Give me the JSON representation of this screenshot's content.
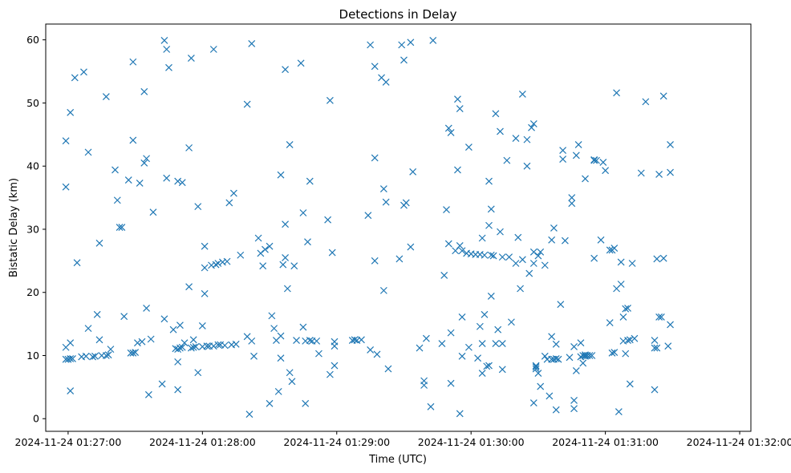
{
  "chart_data": {
    "type": "scatter",
    "title": "Detections in Delay",
    "xlabel": "Time (UTC)",
    "ylabel": "Bistatic Delay (km)",
    "marker": "x",
    "color": "#1f77b4",
    "grid": false,
    "x_unit": "2024-11-24 time (HH:MM:SS)",
    "xlim": [
      "01:26:50",
      "01:32:05"
    ],
    "ylim": [
      -2,
      62.5
    ],
    "x_ticks": [
      "2024-11-24 01:27:00",
      "2024-11-24 01:28:00",
      "2024-11-24 01:29:00",
      "2024-11-24 01:30:00",
      "2024-11-24 01:31:00",
      "2024-11-24 01:32:00"
    ],
    "y_ticks": [
      "0",
      "10",
      "20",
      "30",
      "40",
      "50",
      "60"
    ],
    "points": [
      [
        "01:26:59",
        44.0
      ],
      [
        "01:26:59",
        36.7
      ],
      [
        "01:26:59",
        11.3
      ],
      [
        "01:26:59",
        9.4
      ],
      [
        "01:27:00",
        9.4
      ],
      [
        "01:27:01",
        9.5
      ],
      [
        "01:27:01",
        12.0
      ],
      [
        "01:27:01",
        48.5
      ],
      [
        "01:27:01",
        4.4
      ],
      [
        "01:27:02",
        9.5
      ],
      [
        "01:27:03",
        54.0
      ],
      [
        "01:27:04",
        24.7
      ],
      [
        "01:27:06",
        9.8
      ],
      [
        "01:27:07",
        54.9
      ],
      [
        "01:27:08",
        9.9
      ],
      [
        "01:27:09",
        42.2
      ],
      [
        "01:27:09",
        14.3
      ],
      [
        "01:27:11",
        9.8
      ],
      [
        "01:27:12",
        9.9
      ],
      [
        "01:27:13",
        16.5
      ],
      [
        "01:27:14",
        27.8
      ],
      [
        "01:27:14",
        12.5
      ],
      [
        "01:27:15",
        10.0
      ],
      [
        "01:27:17",
        51.0
      ],
      [
        "01:27:17",
        10.0
      ],
      [
        "01:27:18",
        10.1
      ],
      [
        "01:27:19",
        11.0
      ],
      [
        "01:27:21",
        39.4
      ],
      [
        "01:27:22",
        34.6
      ],
      [
        "01:27:23",
        30.3
      ],
      [
        "01:27:24",
        30.3
      ],
      [
        "01:27:25",
        16.2
      ],
      [
        "01:27:27",
        37.8
      ],
      [
        "01:27:28",
        10.4
      ],
      [
        "01:27:29",
        44.1
      ],
      [
        "01:27:29",
        56.5
      ],
      [
        "01:27:29",
        10.4
      ],
      [
        "01:27:30",
        10.5
      ],
      [
        "01:27:31",
        12.0
      ],
      [
        "01:27:32",
        37.3
      ],
      [
        "01:27:33",
        12.2
      ],
      [
        "01:27:34",
        40.5
      ],
      [
        "01:27:34",
        51.8
      ],
      [
        "01:27:35",
        41.2
      ],
      [
        "01:27:35",
        17.5
      ],
      [
        "01:27:36",
        3.8
      ],
      [
        "01:27:37",
        12.6
      ],
      [
        "01:27:38",
        32.7
      ],
      [
        "01:27:42",
        5.5
      ],
      [
        "01:27:43",
        59.9
      ],
      [
        "01:27:43",
        15.8
      ],
      [
        "01:27:44",
        38.1
      ],
      [
        "01:27:44",
        58.5
      ],
      [
        "01:27:45",
        55.6
      ],
      [
        "01:27:47",
        14.1
      ],
      [
        "01:27:48",
        11.1
      ],
      [
        "01:27:49",
        37.6
      ],
      [
        "01:27:49",
        4.6
      ],
      [
        "01:27:49",
        9.0
      ],
      [
        "01:27:49",
        11.0
      ],
      [
        "01:27:50",
        11.2
      ],
      [
        "01:27:50",
        14.8
      ],
      [
        "01:27:51",
        37.4
      ],
      [
        "01:27:51",
        11.3
      ],
      [
        "01:27:52",
        12.0
      ],
      [
        "01:27:54",
        20.9
      ],
      [
        "01:27:54",
        42.9
      ],
      [
        "01:27:55",
        11.2
      ],
      [
        "01:27:55",
        57.1
      ],
      [
        "01:27:56",
        11.3
      ],
      [
        "01:27:56",
        12.5
      ],
      [
        "01:27:57",
        11.4
      ],
      [
        "01:27:58",
        7.3
      ],
      [
        "01:27:58",
        33.6
      ],
      [
        "01:28:00",
        14.7
      ],
      [
        "01:28:00",
        11.4
      ],
      [
        "01:28:01",
        23.9
      ],
      [
        "01:28:01",
        19.8
      ],
      [
        "01:28:01",
        27.3
      ],
      [
        "01:28:02",
        11.5
      ],
      [
        "01:28:03",
        11.5
      ],
      [
        "01:28:04",
        24.3
      ],
      [
        "01:28:05",
        58.5
      ],
      [
        "01:28:05",
        11.5
      ],
      [
        "01:28:06",
        24.4
      ],
      [
        "01:28:07",
        11.7
      ],
      [
        "01:28:07",
        24.6
      ],
      [
        "01:28:08",
        11.7
      ],
      [
        "01:28:09",
        24.8
      ],
      [
        "01:28:10",
        11.6
      ],
      [
        "01:28:11",
        24.9
      ],
      [
        "01:28:12",
        34.2
      ],
      [
        "01:28:13",
        11.7
      ],
      [
        "01:28:14",
        35.7
      ],
      [
        "01:28:15",
        11.8
      ],
      [
        "01:28:17",
        25.9
      ],
      [
        "01:28:20",
        49.8
      ],
      [
        "01:28:20",
        13.0
      ],
      [
        "01:28:21",
        0.7
      ],
      [
        "01:28:22",
        59.4
      ],
      [
        "01:28:22",
        12.3
      ],
      [
        "01:28:23",
        9.9
      ],
      [
        "01:28:25",
        28.6
      ],
      [
        "01:28:26",
        26.2
      ],
      [
        "01:28:27",
        24.2
      ],
      [
        "01:28:28",
        26.8
      ],
      [
        "01:28:30",
        27.3
      ],
      [
        "01:28:30",
        2.4
      ],
      [
        "01:28:31",
        16.3
      ],
      [
        "01:28:32",
        14.3
      ],
      [
        "01:28:33",
        12.4
      ],
      [
        "01:28:34",
        4.3
      ],
      [
        "01:28:35",
        38.6
      ],
      [
        "01:28:35",
        13.1
      ],
      [
        "01:28:35",
        9.6
      ],
      [
        "01:28:36",
        24.4
      ],
      [
        "01:28:37",
        25.5
      ],
      [
        "01:28:37",
        30.8
      ],
      [
        "01:28:37",
        55.3
      ],
      [
        "01:28:38",
        20.6
      ],
      [
        "01:28:39",
        43.4
      ],
      [
        "01:28:39",
        7.3
      ],
      [
        "01:28:40",
        5.9
      ],
      [
        "01:28:41",
        24.2
      ],
      [
        "01:28:42",
        12.4
      ],
      [
        "01:28:44",
        56.3
      ],
      [
        "01:28:45",
        14.5
      ],
      [
        "01:28:45",
        32.6
      ],
      [
        "01:28:46",
        12.3
      ],
      [
        "01:28:46",
        2.4
      ],
      [
        "01:28:47",
        28.0
      ],
      [
        "01:28:48",
        12.4
      ],
      [
        "01:28:48",
        37.6
      ],
      [
        "01:28:49",
        12.3
      ],
      [
        "01:28:51",
        12.3
      ],
      [
        "01:28:52",
        10.3
      ],
      [
        "01:28:56",
        31.5
      ],
      [
        "01:28:57",
        7.0
      ],
      [
        "01:28:57",
        50.4
      ],
      [
        "01:28:58",
        26.3
      ],
      [
        "01:28:59",
        8.4
      ],
      [
        "01:28:59",
        11.5
      ],
      [
        "01:28:59",
        12.2
      ],
      [
        "01:29:07",
        12.4
      ],
      [
        "01:29:08",
        12.5
      ],
      [
        "01:29:09",
        12.4
      ],
      [
        "01:29:11",
        12.5
      ],
      [
        "01:29:14",
        32.2
      ],
      [
        "01:29:15",
        59.2
      ],
      [
        "01:29:15",
        10.9
      ],
      [
        "01:29:17",
        55.8
      ],
      [
        "01:29:17",
        41.3
      ],
      [
        "01:29:17",
        25.0
      ],
      [
        "01:29:18",
        10.2
      ],
      [
        "01:29:20",
        54.0
      ],
      [
        "01:29:21",
        36.4
      ],
      [
        "01:29:21",
        20.3
      ],
      [
        "01:29:22",
        34.3
      ],
      [
        "01:29:22",
        53.3
      ],
      [
        "01:29:23",
        7.9
      ],
      [
        "01:29:28",
        25.3
      ],
      [
        "01:29:29",
        59.2
      ],
      [
        "01:29:30",
        56.8
      ],
      [
        "01:29:30",
        33.8
      ],
      [
        "01:29:31",
        34.2
      ],
      [
        "01:29:33",
        27.2
      ],
      [
        "01:29:33",
        59.6
      ],
      [
        "01:29:34",
        39.1
      ],
      [
        "01:29:37",
        11.2
      ],
      [
        "01:29:39",
        6.0
      ],
      [
        "01:29:39",
        5.3
      ],
      [
        "01:29:40",
        12.7
      ],
      [
        "01:29:42",
        1.9
      ],
      [
        "01:29:43",
        59.9
      ],
      [
        "01:29:47",
        11.9
      ],
      [
        "01:29:48",
        22.7
      ],
      [
        "01:29:49",
        33.1
      ],
      [
        "01:29:50",
        46.0
      ],
      [
        "01:29:50",
        27.7
      ],
      [
        "01:29:51",
        45.3
      ],
      [
        "01:29:51",
        13.6
      ],
      [
        "01:29:51",
        5.6
      ],
      [
        "01:29:53",
        26.6
      ],
      [
        "01:29:54",
        50.6
      ],
      [
        "01:29:54",
        39.4
      ],
      [
        "01:29:55",
        49.1
      ],
      [
        "01:29:55",
        27.4
      ],
      [
        "01:29:55",
        0.8
      ],
      [
        "01:29:56",
        9.9
      ],
      [
        "01:29:56",
        16.1
      ],
      [
        "01:29:56",
        26.6
      ],
      [
        "01:29:58",
        26.2
      ],
      [
        "01:29:59",
        43.0
      ],
      [
        "01:29:59",
        11.3
      ],
      [
        "01:30:00",
        26.1
      ],
      [
        "01:30:02",
        26.0
      ],
      [
        "01:30:03",
        9.6
      ],
      [
        "01:30:04",
        14.6
      ],
      [
        "01:30:04",
        26.0
      ],
      [
        "01:30:05",
        7.2
      ],
      [
        "01:30:05",
        11.9
      ],
      [
        "01:30:05",
        28.6
      ],
      [
        "01:30:06",
        25.9
      ],
      [
        "01:30:06",
        16.5
      ],
      [
        "01:30:07",
        8.3
      ],
      [
        "01:30:08",
        37.6
      ],
      [
        "01:30:08",
        30.6
      ],
      [
        "01:30:08",
        8.4
      ],
      [
        "01:30:09",
        19.4
      ],
      [
        "01:30:09",
        25.9
      ],
      [
        "01:30:09",
        33.2
      ],
      [
        "01:30:10",
        25.8
      ],
      [
        "01:30:11",
        48.3
      ],
      [
        "01:30:11",
        11.9
      ],
      [
        "01:30:12",
        14.1
      ],
      [
        "01:30:13",
        29.6
      ],
      [
        "01:30:13",
        45.5
      ],
      [
        "01:30:14",
        25.6
      ],
      [
        "01:30:14",
        7.8
      ],
      [
        "01:30:14",
        11.9
      ],
      [
        "01:30:16",
        40.9
      ],
      [
        "01:30:17",
        25.6
      ],
      [
        "01:30:18",
        15.3
      ],
      [
        "01:30:20",
        24.6
      ],
      [
        "01:30:20",
        44.4
      ],
      [
        "01:30:21",
        28.7
      ],
      [
        "01:30:22",
        20.6
      ],
      [
        "01:30:23",
        25.2
      ],
      [
        "01:30:23",
        51.4
      ],
      [
        "01:30:25",
        44.2
      ],
      [
        "01:30:25",
        40.0
      ],
      [
        "01:30:26",
        23.0
      ],
      [
        "01:30:27",
        46.1
      ],
      [
        "01:30:28",
        24.6
      ],
      [
        "01:30:28",
        46.7
      ],
      [
        "01:30:28",
        26.4
      ],
      [
        "01:30:28",
        2.5
      ],
      [
        "01:30:29",
        8.4
      ],
      [
        "01:30:29",
        7.9
      ],
      [
        "01:30:29",
        8.2
      ],
      [
        "01:30:30",
        7.2
      ],
      [
        "01:30:30",
        25.8
      ],
      [
        "01:30:31",
        26.4
      ],
      [
        "01:30:31",
        5.1
      ],
      [
        "01:30:33",
        24.3
      ],
      [
        "01:30:33",
        9.9
      ],
      [
        "01:30:34",
        9.4
      ],
      [
        "01:30:35",
        3.6
      ],
      [
        "01:30:36",
        28.3
      ],
      [
        "01:30:36",
        13.0
      ],
      [
        "01:30:36",
        9.4
      ],
      [
        "01:30:37",
        30.2
      ],
      [
        "01:30:37",
        9.4
      ],
      [
        "01:30:38",
        11.8
      ],
      [
        "01:30:38",
        1.4
      ],
      [
        "01:30:38",
        9.5
      ],
      [
        "01:30:39",
        9.4
      ],
      [
        "01:30:40",
        18.1
      ],
      [
        "01:30:41",
        42.5
      ],
      [
        "01:30:41",
        41.1
      ],
      [
        "01:30:42",
        28.2
      ],
      [
        "01:30:44",
        9.7
      ],
      [
        "01:30:45",
        35.0
      ],
      [
        "01:30:45",
        34.1
      ],
      [
        "01:30:46",
        1.6
      ],
      [
        "01:30:46",
        2.9
      ],
      [
        "01:30:46",
        11.4
      ],
      [
        "01:30:47",
        41.7
      ],
      [
        "01:30:47",
        7.6
      ],
      [
        "01:30:48",
        43.4
      ],
      [
        "01:30:49",
        12.0
      ],
      [
        "01:30:49",
        9.8
      ],
      [
        "01:30:50",
        8.8
      ],
      [
        "01:30:50",
        10.0
      ],
      [
        "01:30:51",
        38.0
      ],
      [
        "01:30:51",
        10.1
      ],
      [
        "01:30:51",
        9.9
      ],
      [
        "01:30:52",
        10.0
      ],
      [
        "01:30:53",
        10.0
      ],
      [
        "01:30:54",
        10.0
      ],
      [
        "01:30:55",
        41.0
      ],
      [
        "01:30:55",
        40.9
      ],
      [
        "01:30:55",
        25.4
      ],
      [
        "01:30:56",
        40.9
      ],
      [
        "01:30:58",
        28.3
      ],
      [
        "01:30:59",
        40.6
      ],
      [
        "01:31:00",
        39.3
      ],
      [
        "01:31:02",
        15.2
      ],
      [
        "01:31:02",
        26.7
      ],
      [
        "01:31:03",
        26.7
      ],
      [
        "01:31:03",
        10.4
      ],
      [
        "01:31:04",
        10.5
      ],
      [
        "01:31:04",
        27.0
      ],
      [
        "01:31:05",
        51.6
      ],
      [
        "01:31:05",
        20.6
      ],
      [
        "01:31:06",
        1.1
      ],
      [
        "01:31:07",
        24.8
      ],
      [
        "01:31:07",
        21.3
      ],
      [
        "01:31:08",
        12.3
      ],
      [
        "01:31:08",
        16.1
      ],
      [
        "01:31:09",
        10.3
      ],
      [
        "01:31:09",
        17.4
      ],
      [
        "01:31:10",
        17.5
      ],
      [
        "01:31:10",
        12.4
      ],
      [
        "01:31:11",
        12.5
      ],
      [
        "01:31:11",
        5.5
      ],
      [
        "01:31:12",
        24.6
      ],
      [
        "01:31:13",
        12.7
      ],
      [
        "01:31:16",
        38.9
      ],
      [
        "01:31:18",
        50.2
      ],
      [
        "01:31:22",
        4.6
      ],
      [
        "01:31:22",
        11.2
      ],
      [
        "01:31:22",
        12.4
      ],
      [
        "01:31:23",
        11.2
      ],
      [
        "01:31:23",
        25.3
      ],
      [
        "01:31:24",
        38.7
      ],
      [
        "01:31:24",
        16.1
      ],
      [
        "01:31:25",
        16.1
      ],
      [
        "01:31:26",
        25.4
      ],
      [
        "01:31:26",
        51.1
      ],
      [
        "01:31:28",
        11.5
      ],
      [
        "01:31:29",
        39.0
      ],
      [
        "01:31:29",
        14.9
      ],
      [
        "01:31:29",
        43.4
      ]
    ]
  }
}
